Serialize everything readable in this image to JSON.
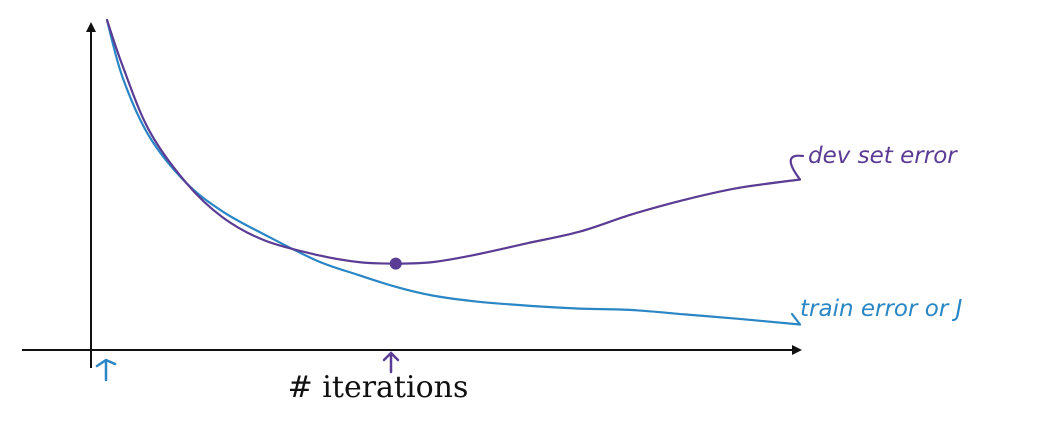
{
  "chart_data": {
    "type": "line",
    "xlabel": "# iterations",
    "ylabel": "",
    "grid": false,
    "colors": {
      "axis": "#111111",
      "dev": "#5b3c94",
      "train": "#2a86c4"
    },
    "series": [
      {
        "name": "dev set error",
        "label_text": "dev set error",
        "color_key": "dev",
        "x": [
          0,
          3,
          8,
          15,
          22,
          30,
          40,
          48,
          55,
          62,
          70,
          80,
          90,
          100,
          110,
          120,
          132
        ],
        "y": [
          100,
          84,
          62,
          44,
          32,
          24,
          19,
          16.5,
          16,
          16.5,
          19,
          23,
          27,
          33,
          38,
          42,
          45
        ]
      },
      {
        "name": "train error or J",
        "label_text": "train error or J",
        "color_key": "train",
        "x": [
          0,
          3,
          8,
          15,
          22,
          30,
          40,
          48,
          55,
          62,
          70,
          80,
          90,
          100,
          110,
          120,
          132
        ],
        "y": [
          100,
          80,
          60,
          44,
          34,
          26,
          17,
          12,
          8,
          5,
          3,
          1.5,
          0.5,
          0,
          -1.5,
          -3,
          -5
        ]
      }
    ],
    "markers": [
      {
        "name": "dev-min",
        "series": 0,
        "x": 55,
        "y": 16
      }
    ]
  }
}
